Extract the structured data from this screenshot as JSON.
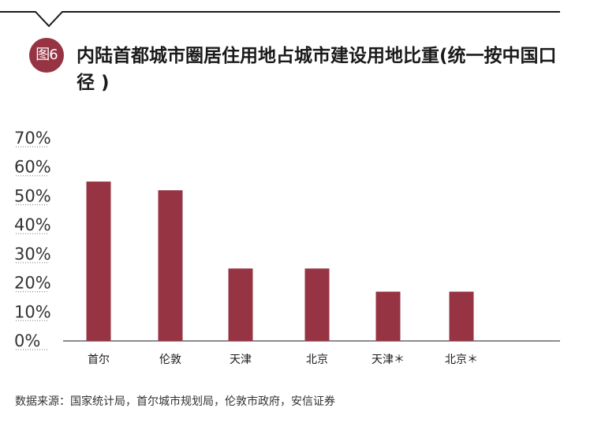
{
  "header": {
    "badge": "图6",
    "title": "内陆首都城市圈居住用地占城市建设用地比重(统一按中国口径 )"
  },
  "chart_data": {
    "type": "bar",
    "categories": [
      "首尔",
      "伦敦",
      "天津",
      "北京",
      "天津＊",
      "北京＊"
    ],
    "values": [
      55,
      52,
      25,
      25,
      17,
      17
    ],
    "ylim": [
      0,
      70
    ],
    "yticks": [
      0,
      10,
      20,
      30,
      40,
      50,
      60,
      70
    ],
    "ytick_labels": [
      "0%",
      "10%",
      "20%",
      "30%",
      "40%",
      "50%",
      "60%",
      "70%"
    ],
    "grid": false,
    "bar_color": "#963444"
  },
  "footer": {
    "source": "数据来源：国家统计局，首尔城市规划局，伦敦市政府，安信证券"
  }
}
